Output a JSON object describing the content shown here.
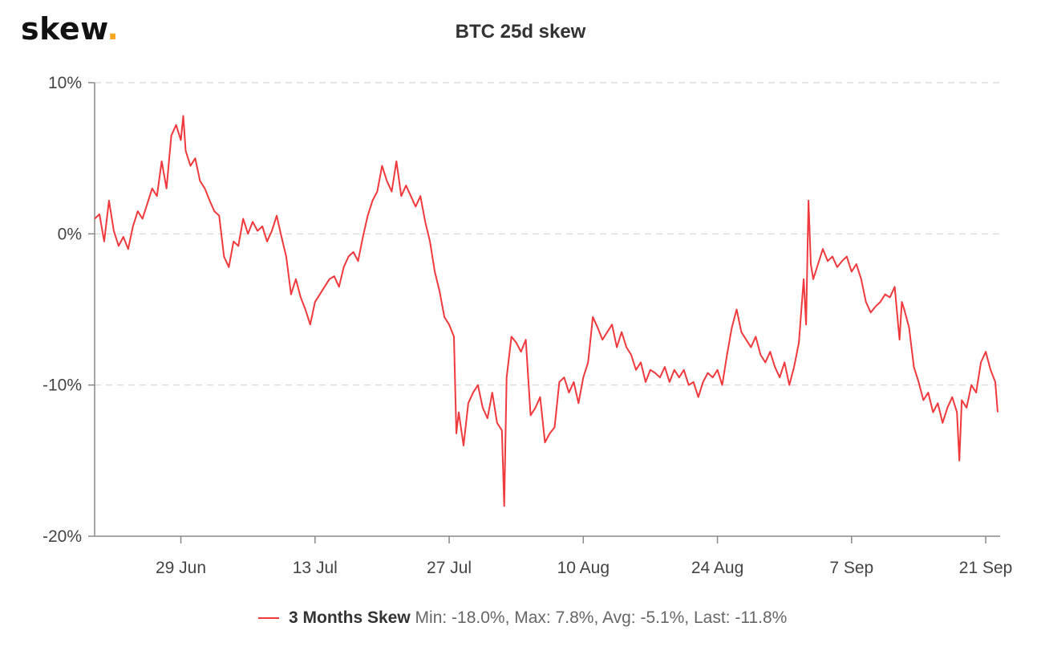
{
  "logo": {
    "text": "skew",
    "dot": "."
  },
  "chart_data": {
    "type": "line",
    "title": "BTC 25d skew",
    "xlabel": "",
    "ylabel": "",
    "ylim": [
      -0.2,
      0.1
    ],
    "y_ticks": [
      {
        "value": 0.1,
        "label": "10%"
      },
      {
        "value": 0.0,
        "label": "0%"
      },
      {
        "value": -0.1,
        "label": "-10%"
      },
      {
        "value": -0.2,
        "label": "-20%"
      }
    ],
    "x_range": [
      "2020-06-20",
      "2020-09-22"
    ],
    "x_ticks": [
      {
        "date": "2020-06-29",
        "label": "29 Jun"
      },
      {
        "date": "2020-07-13",
        "label": "13 Jul"
      },
      {
        "date": "2020-07-27",
        "label": "27 Jul"
      },
      {
        "date": "2020-08-10",
        "label": "10 Aug"
      },
      {
        "date": "2020-08-24",
        "label": "24 Aug"
      },
      {
        "date": "2020-09-07",
        "label": "7 Sep"
      },
      {
        "date": "2020-09-21",
        "label": "21 Sep"
      }
    ],
    "grid": true,
    "legend": "bottom-center",
    "color": "#f0393c",
    "series": [
      {
        "name": "3 Months Skew",
        "stats": "Min: -18.0%, Max: 7.8%, Avg: -5.1%, Last: -11.8%",
        "points": [
          [
            "2020-06-20 00:00",
            0.01
          ],
          [
            "2020-06-20 12:00",
            0.013
          ],
          [
            "2020-06-21 00:00",
            -0.005
          ],
          [
            "2020-06-21 12:00",
            0.022
          ],
          [
            "2020-06-22 00:00",
            0.002
          ],
          [
            "2020-06-22 12:00",
            -0.008
          ],
          [
            "2020-06-23 00:00",
            -0.002
          ],
          [
            "2020-06-23 12:00",
            -0.01
          ],
          [
            "2020-06-24 00:00",
            0.005
          ],
          [
            "2020-06-24 12:00",
            0.015
          ],
          [
            "2020-06-25 00:00",
            0.01
          ],
          [
            "2020-06-25 12:00",
            0.02
          ],
          [
            "2020-06-26 00:00",
            0.03
          ],
          [
            "2020-06-26 12:00",
            0.025
          ],
          [
            "2020-06-27 00:00",
            0.048
          ],
          [
            "2020-06-27 12:00",
            0.03
          ],
          [
            "2020-06-28 00:00",
            0.065
          ],
          [
            "2020-06-28 12:00",
            0.072
          ],
          [
            "2020-06-29 00:00",
            0.062
          ],
          [
            "2020-06-29 06:00",
            0.078
          ],
          [
            "2020-06-29 12:00",
            0.055
          ],
          [
            "2020-06-30 00:00",
            0.045
          ],
          [
            "2020-06-30 12:00",
            0.05
          ],
          [
            "2020-07-01 00:00",
            0.035
          ],
          [
            "2020-07-01 12:00",
            0.03
          ],
          [
            "2020-07-02 00:00",
            0.022
          ],
          [
            "2020-07-02 12:00",
            0.015
          ],
          [
            "2020-07-03 00:00",
            0.012
          ],
          [
            "2020-07-03 12:00",
            -0.015
          ],
          [
            "2020-07-04 00:00",
            -0.022
          ],
          [
            "2020-07-04 12:00",
            -0.005
          ],
          [
            "2020-07-05 00:00",
            -0.008
          ],
          [
            "2020-07-05 12:00",
            0.01
          ],
          [
            "2020-07-06 00:00",
            0.0
          ],
          [
            "2020-07-06 12:00",
            0.008
          ],
          [
            "2020-07-07 00:00",
            0.002
          ],
          [
            "2020-07-07 12:00",
            0.005
          ],
          [
            "2020-07-08 00:00",
            -0.005
          ],
          [
            "2020-07-08 12:00",
            0.002
          ],
          [
            "2020-07-09 00:00",
            0.012
          ],
          [
            "2020-07-09 12:00",
            -0.002
          ],
          [
            "2020-07-10 00:00",
            -0.015
          ],
          [
            "2020-07-10 12:00",
            -0.04
          ],
          [
            "2020-07-11 00:00",
            -0.03
          ],
          [
            "2020-07-11 12:00",
            -0.042
          ],
          [
            "2020-07-12 00:00",
            -0.05
          ],
          [
            "2020-07-12 12:00",
            -0.06
          ],
          [
            "2020-07-13 00:00",
            -0.045
          ],
          [
            "2020-07-13 12:00",
            -0.04
          ],
          [
            "2020-07-14 00:00",
            -0.035
          ],
          [
            "2020-07-14 12:00",
            -0.03
          ],
          [
            "2020-07-15 00:00",
            -0.028
          ],
          [
            "2020-07-15 12:00",
            -0.035
          ],
          [
            "2020-07-16 00:00",
            -0.022
          ],
          [
            "2020-07-16 12:00",
            -0.015
          ],
          [
            "2020-07-17 00:00",
            -0.012
          ],
          [
            "2020-07-17 12:00",
            -0.018
          ],
          [
            "2020-07-18 00:00",
            -0.002
          ],
          [
            "2020-07-18 12:00",
            0.012
          ],
          [
            "2020-07-19 00:00",
            0.022
          ],
          [
            "2020-07-19 12:00",
            0.028
          ],
          [
            "2020-07-20 00:00",
            0.045
          ],
          [
            "2020-07-20 12:00",
            0.035
          ],
          [
            "2020-07-21 00:00",
            0.028
          ],
          [
            "2020-07-21 12:00",
            0.048
          ],
          [
            "2020-07-22 00:00",
            0.025
          ],
          [
            "2020-07-22 12:00",
            0.032
          ],
          [
            "2020-07-23 00:00",
            0.025
          ],
          [
            "2020-07-23 12:00",
            0.018
          ],
          [
            "2020-07-24 00:00",
            0.025
          ],
          [
            "2020-07-24 12:00",
            0.008
          ],
          [
            "2020-07-25 00:00",
            -0.005
          ],
          [
            "2020-07-25 12:00",
            -0.025
          ],
          [
            "2020-07-26 00:00",
            -0.038
          ],
          [
            "2020-07-26 12:00",
            -0.055
          ],
          [
            "2020-07-27 00:00",
            -0.06
          ],
          [
            "2020-07-27 12:00",
            -0.068
          ],
          [
            "2020-07-27 18:00",
            -0.132
          ],
          [
            "2020-07-28 00:00",
            -0.118
          ],
          [
            "2020-07-28 12:00",
            -0.14
          ],
          [
            "2020-07-29 00:00",
            -0.112
          ],
          [
            "2020-07-29 12:00",
            -0.105
          ],
          [
            "2020-07-30 00:00",
            -0.1
          ],
          [
            "2020-07-30 12:00",
            -0.115
          ],
          [
            "2020-07-31 00:00",
            -0.122
          ],
          [
            "2020-07-31 12:00",
            -0.105
          ],
          [
            "2020-08-01 00:00",
            -0.125
          ],
          [
            "2020-08-01 12:00",
            -0.13
          ],
          [
            "2020-08-01 18:00",
            -0.18
          ],
          [
            "2020-08-02 00:00",
            -0.095
          ],
          [
            "2020-08-02 12:00",
            -0.068
          ],
          [
            "2020-08-03 00:00",
            -0.072
          ],
          [
            "2020-08-03 12:00",
            -0.078
          ],
          [
            "2020-08-04 00:00",
            -0.07
          ],
          [
            "2020-08-04 12:00",
            -0.12
          ],
          [
            "2020-08-05 00:00",
            -0.115
          ],
          [
            "2020-08-05 12:00",
            -0.108
          ],
          [
            "2020-08-06 00:00",
            -0.138
          ],
          [
            "2020-08-06 12:00",
            -0.132
          ],
          [
            "2020-08-07 00:00",
            -0.128
          ],
          [
            "2020-08-07 12:00",
            -0.098
          ],
          [
            "2020-08-08 00:00",
            -0.095
          ],
          [
            "2020-08-08 12:00",
            -0.105
          ],
          [
            "2020-08-09 00:00",
            -0.098
          ],
          [
            "2020-08-09 12:00",
            -0.112
          ],
          [
            "2020-08-10 00:00",
            -0.095
          ],
          [
            "2020-08-10 12:00",
            -0.085
          ],
          [
            "2020-08-11 00:00",
            -0.055
          ],
          [
            "2020-08-11 12:00",
            -0.062
          ],
          [
            "2020-08-12 00:00",
            -0.07
          ],
          [
            "2020-08-12 12:00",
            -0.065
          ],
          [
            "2020-08-13 00:00",
            -0.06
          ],
          [
            "2020-08-13 12:00",
            -0.075
          ],
          [
            "2020-08-14 00:00",
            -0.065
          ],
          [
            "2020-08-14 12:00",
            -0.075
          ],
          [
            "2020-08-15 00:00",
            -0.08
          ],
          [
            "2020-08-15 12:00",
            -0.09
          ],
          [
            "2020-08-16 00:00",
            -0.085
          ],
          [
            "2020-08-16 12:00",
            -0.098
          ],
          [
            "2020-08-17 00:00",
            -0.09
          ],
          [
            "2020-08-17 12:00",
            -0.092
          ],
          [
            "2020-08-18 00:00",
            -0.095
          ],
          [
            "2020-08-18 12:00",
            -0.088
          ],
          [
            "2020-08-19 00:00",
            -0.098
          ],
          [
            "2020-08-19 12:00",
            -0.09
          ],
          [
            "2020-08-20 00:00",
            -0.095
          ],
          [
            "2020-08-20 12:00",
            -0.09
          ],
          [
            "2020-08-21 00:00",
            -0.1
          ],
          [
            "2020-08-21 12:00",
            -0.098
          ],
          [
            "2020-08-22 00:00",
            -0.108
          ],
          [
            "2020-08-22 12:00",
            -0.098
          ],
          [
            "2020-08-23 00:00",
            -0.092
          ],
          [
            "2020-08-23 12:00",
            -0.095
          ],
          [
            "2020-08-24 00:00",
            -0.09
          ],
          [
            "2020-08-24 12:00",
            -0.1
          ],
          [
            "2020-08-25 00:00",
            -0.08
          ],
          [
            "2020-08-25 12:00",
            -0.062
          ],
          [
            "2020-08-26 00:00",
            -0.05
          ],
          [
            "2020-08-26 12:00",
            -0.065
          ],
          [
            "2020-08-27 00:00",
            -0.07
          ],
          [
            "2020-08-27 12:00",
            -0.075
          ],
          [
            "2020-08-28 00:00",
            -0.068
          ],
          [
            "2020-08-28 12:00",
            -0.08
          ],
          [
            "2020-08-29 00:00",
            -0.085
          ],
          [
            "2020-08-29 12:00",
            -0.078
          ],
          [
            "2020-08-30 00:00",
            -0.088
          ],
          [
            "2020-08-30 12:00",
            -0.095
          ],
          [
            "2020-08-31 00:00",
            -0.085
          ],
          [
            "2020-08-31 12:00",
            -0.1
          ],
          [
            "2020-09-01 00:00",
            -0.088
          ],
          [
            "2020-09-01 12:00",
            -0.072
          ],
          [
            "2020-09-02 00:00",
            -0.03
          ],
          [
            "2020-09-02 06:00",
            -0.06
          ],
          [
            "2020-09-02 12:00",
            0.022
          ],
          [
            "2020-09-02 18:00",
            -0.02
          ],
          [
            "2020-09-03 00:00",
            -0.03
          ],
          [
            "2020-09-03 12:00",
            -0.02
          ],
          [
            "2020-09-04 00:00",
            -0.01
          ],
          [
            "2020-09-04 12:00",
            -0.018
          ],
          [
            "2020-09-05 00:00",
            -0.015
          ],
          [
            "2020-09-05 12:00",
            -0.022
          ],
          [
            "2020-09-06 00:00",
            -0.018
          ],
          [
            "2020-09-06 12:00",
            -0.015
          ],
          [
            "2020-09-07 00:00",
            -0.025
          ],
          [
            "2020-09-07 12:00",
            -0.02
          ],
          [
            "2020-09-08 00:00",
            -0.03
          ],
          [
            "2020-09-08 12:00",
            -0.045
          ],
          [
            "2020-09-09 00:00",
            -0.052
          ],
          [
            "2020-09-09 12:00",
            -0.048
          ],
          [
            "2020-09-10 00:00",
            -0.045
          ],
          [
            "2020-09-10 12:00",
            -0.04
          ],
          [
            "2020-09-11 00:00",
            -0.042
          ],
          [
            "2020-09-11 12:00",
            -0.035
          ],
          [
            "2020-09-12 00:00",
            -0.07
          ],
          [
            "2020-09-12 06:00",
            -0.045
          ],
          [
            "2020-09-12 12:00",
            -0.05
          ],
          [
            "2020-09-13 00:00",
            -0.062
          ],
          [
            "2020-09-13 12:00",
            -0.088
          ],
          [
            "2020-09-14 00:00",
            -0.098
          ],
          [
            "2020-09-14 12:00",
            -0.11
          ],
          [
            "2020-09-15 00:00",
            -0.105
          ],
          [
            "2020-09-15 12:00",
            -0.118
          ],
          [
            "2020-09-16 00:00",
            -0.112
          ],
          [
            "2020-09-16 12:00",
            -0.125
          ],
          [
            "2020-09-17 00:00",
            -0.115
          ],
          [
            "2020-09-17 12:00",
            -0.108
          ],
          [
            "2020-09-18 00:00",
            -0.118
          ],
          [
            "2020-09-18 06:00",
            -0.15
          ],
          [
            "2020-09-18 12:00",
            -0.11
          ],
          [
            "2020-09-19 00:00",
            -0.115
          ],
          [
            "2020-09-19 12:00",
            -0.1
          ],
          [
            "2020-09-20 00:00",
            -0.105
          ],
          [
            "2020-09-20 12:00",
            -0.085
          ],
          [
            "2020-09-21 00:00",
            -0.078
          ],
          [
            "2020-09-21 12:00",
            -0.09
          ],
          [
            "2020-09-22 00:00",
            -0.098
          ],
          [
            "2020-09-22 06:00",
            -0.118
          ]
        ]
      }
    ]
  }
}
